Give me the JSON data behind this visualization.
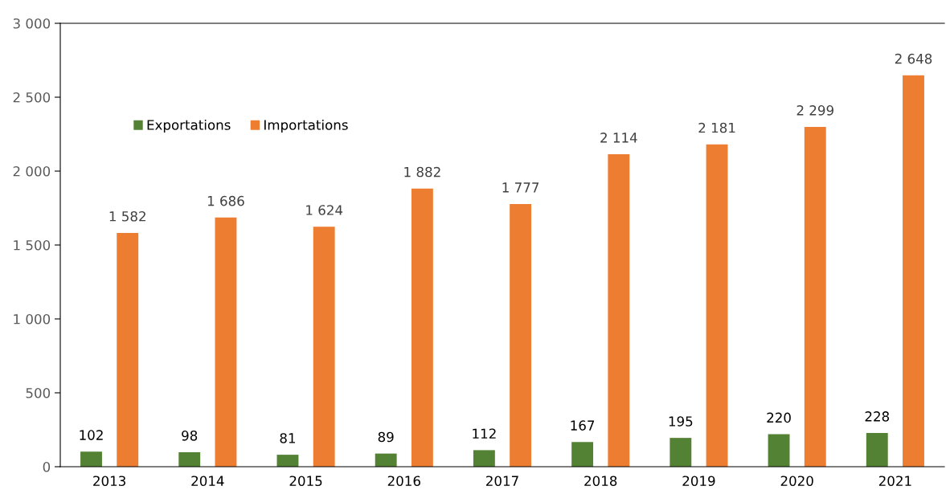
{
  "chart_data": {
    "type": "bar",
    "categories": [
      "2013",
      "2014",
      "2015",
      "2016",
      "2017",
      "2018",
      "2019",
      "2020",
      "2021"
    ],
    "series": [
      {
        "name": "Exportations",
        "color": "#548235",
        "values": [
          102,
          98,
          81,
          89,
          112,
          167,
          195,
          220,
          228
        ],
        "value_labels": [
          "102",
          "98",
          "81",
          "89",
          "112",
          "167",
          "195",
          "220",
          "228"
        ]
      },
      {
        "name": "Importations",
        "color": "#ed7d31",
        "values": [
          1582,
          1686,
          1624,
          1882,
          1777,
          2114,
          2181,
          2299,
          2648
        ],
        "value_labels": [
          "1 582",
          "1 686",
          "1 624",
          "1 882",
          "1 777",
          "2 114",
          "2 181",
          "2 299",
          "2 648"
        ]
      }
    ],
    "ylim": [
      0,
      3000
    ],
    "yticks": [
      {
        "value": 0,
        "label": "0"
      },
      {
        "value": 500,
        "label": "500"
      },
      {
        "value": 1000,
        "label": "1 000"
      },
      {
        "value": 1500,
        "label": "1 500"
      },
      {
        "value": 2000,
        "label": "2 000"
      },
      {
        "value": 2500,
        "label": "2 500"
      },
      {
        "value": 3000,
        "label": "3 000"
      }
    ],
    "grid": false,
    "legend": "top left"
  }
}
